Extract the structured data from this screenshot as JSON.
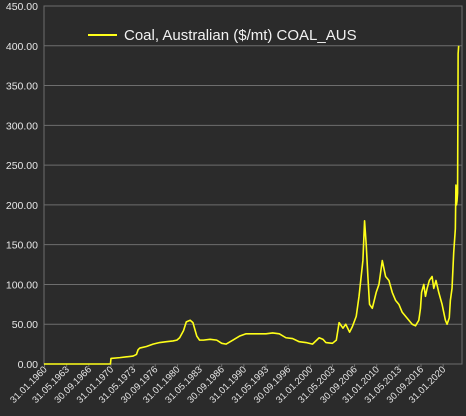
{
  "colors": {
    "background": "#2b2b2b",
    "plot_border": "#6e6e6e",
    "grid": "#6e6e6e",
    "line": "#ffff19",
    "text": "#e6e6e6"
  },
  "chart_data": {
    "type": "line",
    "title": "",
    "xlabel": "",
    "ylabel": "",
    "ylim": [
      0,
      450
    ],
    "y_ticks": [
      "0.00",
      "50.00",
      "100.00",
      "150.00",
      "200.00",
      "250.00",
      "300.00",
      "350.00",
      "400.00",
      "450.00"
    ],
    "x_ticks": [
      "31.01.1960",
      "31.05.1963",
      "30.09.1966",
      "31.01.1970",
      "31.05.1973",
      "30.09.1976",
      "31.01.1980",
      "31.05.1983",
      "30.09.1986",
      "31.01.1990",
      "31.05.1993",
      "30.09.1996",
      "31.01.2000",
      "31.05.2003",
      "30.09.2006",
      "31.01.2010",
      "31.05.2013",
      "30.09.2016",
      "31.01.2020"
    ],
    "xlim": [
      "1960-01",
      "2022-12"
    ],
    "grid": true,
    "legend_position": "top-left",
    "series": [
      {
        "name": "Coal, Australian ($/mt) COAL_AUS",
        "x": [
          "1960-01",
          "1963-06",
          "1966-10",
          "1970-01",
          "1970-02",
          "1971-06",
          "1972-06",
          "1973-06",
          "1973-12",
          "1974-03",
          "1974-06",
          "1975-06",
          "1976-06",
          "1977-06",
          "1978-06",
          "1979-06",
          "1980-01",
          "1980-06",
          "1981-01",
          "1981-06",
          "1982-01",
          "1982-06",
          "1983-01",
          "1983-06",
          "1984-01",
          "1985-01",
          "1986-01",
          "1986-10",
          "1987-06",
          "1988-06",
          "1989-06",
          "1990-06",
          "1991-06",
          "1992-06",
          "1993-06",
          "1994-06",
          "1995-06",
          "1996-06",
          "1997-06",
          "1998-06",
          "1999-06",
          "2000-06",
          "2001-06",
          "2002-01",
          "2002-06",
          "2003-06",
          "2004-01",
          "2004-06",
          "2005-01",
          "2005-06",
          "2006-01",
          "2006-06",
          "2007-01",
          "2007-06",
          "2008-01",
          "2008-04",
          "2008-07",
          "2008-10",
          "2009-01",
          "2009-06",
          "2010-01",
          "2010-06",
          "2010-12",
          "2011-03",
          "2011-06",
          "2011-12",
          "2012-06",
          "2012-12",
          "2013-06",
          "2013-12",
          "2014-06",
          "2014-12",
          "2015-06",
          "2015-12",
          "2016-06",
          "2016-09",
          "2016-11",
          "2017-03",
          "2017-06",
          "2017-09",
          "2018-01",
          "2018-06",
          "2018-09",
          "2019-01",
          "2019-06",
          "2019-12",
          "2020-06",
          "2020-09",
          "2021-01",
          "2021-03",
          "2021-06",
          "2021-09",
          "2021-10",
          "2021-12",
          "2022-01",
          "2022-02",
          "2022-03",
          "2022-04",
          "2022-05",
          "2022-06"
        ],
        "y": [
          0,
          0,
          0,
          0,
          7,
          8,
          9,
          10,
          12,
          18,
          20,
          22,
          25,
          27,
          28,
          29,
          30,
          33,
          42,
          53,
          55,
          52,
          35,
          30,
          30,
          31,
          30,
          26,
          25,
          30,
          35,
          38,
          38,
          38,
          38,
          39,
          38,
          33,
          32,
          28,
          27,
          25,
          33,
          31,
          27,
          26,
          30,
          52,
          45,
          50,
          40,
          47,
          60,
          85,
          130,
          180,
          150,
          110,
          75,
          70,
          90,
          100,
          130,
          120,
          110,
          105,
          90,
          80,
          75,
          65,
          60,
          55,
          50,
          48,
          55,
          70,
          90,
          100,
          85,
          95,
          105,
          110,
          95,
          105,
          90,
          75,
          55,
          50,
          58,
          80,
          95,
          140,
          150,
          170,
          225,
          200,
          205,
          215,
          390,
          400
        ]
      }
    ]
  }
}
